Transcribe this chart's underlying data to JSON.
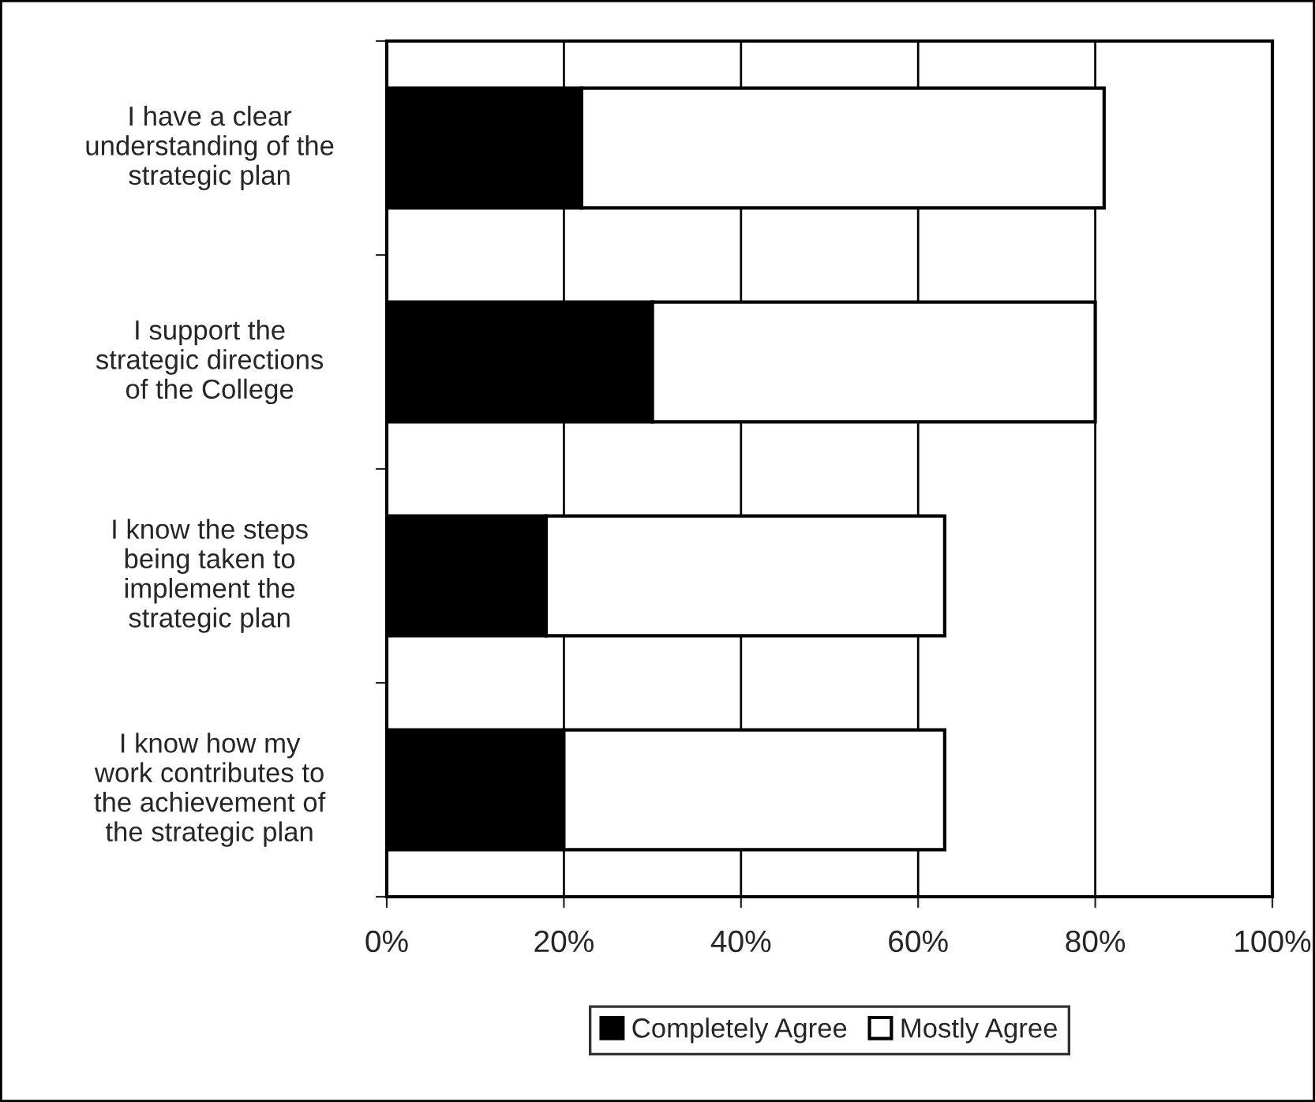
{
  "chart_data": {
    "type": "bar",
    "orientation": "horizontal",
    "stacked": true,
    "categories": [
      "I have a clear\nunderstanding of the\nstrategic plan",
      "I support the\nstrategic directions\nof the College",
      "I know the steps\nbeing taken to\nimplement the\nstrategic plan",
      "I know how my\nwork contributes to\nthe achievement of\nthe strategic plan"
    ],
    "series": [
      {
        "name": "Completely Agree",
        "color": "#000000",
        "values": [
          22,
          30,
          18,
          20
        ]
      },
      {
        "name": "Mostly Agree",
        "color": "#ffffff",
        "values": [
          59,
          50,
          45,
          43
        ]
      }
    ],
    "xlim": [
      0,
      100
    ],
    "xticks": [
      {
        "value": 0,
        "label": "0%"
      },
      {
        "value": 20,
        "label": "20%"
      },
      {
        "value": 40,
        "label": "40%"
      },
      {
        "value": 60,
        "label": "60%"
      },
      {
        "value": 80,
        "label": "80%"
      },
      {
        "value": 100,
        "label": "100%"
      }
    ],
    "grid": "x",
    "legend": "bottom"
  }
}
